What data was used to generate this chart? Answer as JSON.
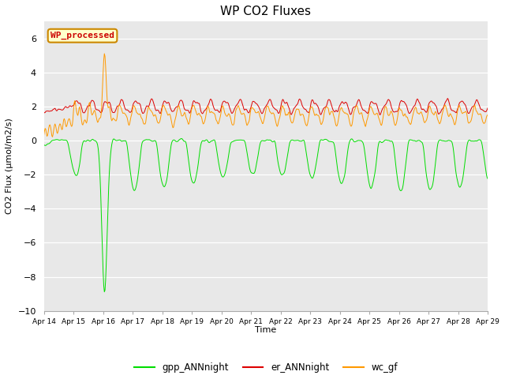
{
  "title": "WP CO2 Fluxes",
  "xlabel": "Time",
  "ylabel": "CO2 Flux (μmol/m2/s)",
  "ylim": [
    -10,
    7
  ],
  "yticks": [
    -10,
    -8,
    -6,
    -4,
    -2,
    0,
    2,
    4,
    6
  ],
  "background_color": "#e8e8e8",
  "fig_background": "#ffffff",
  "legend_label_green": "gpp_ANNnight",
  "legend_label_red": "er_ANNnight",
  "legend_label_orange": "wc_gf",
  "color_green": "#00dd00",
  "color_red": "#dd0000",
  "color_orange": "#ff9900",
  "watermark_text": "WP_processed",
  "watermark_facecolor": "#ffffcc",
  "watermark_edgecolor": "#cc8800",
  "watermark_textcolor": "#cc0000",
  "n_points": 720,
  "x_start": 14,
  "x_end": 29,
  "xtick_positions": [
    14,
    15,
    16,
    17,
    18,
    19,
    20,
    21,
    22,
    23,
    24,
    25,
    26,
    27,
    28,
    29
  ],
  "xtick_labels": [
    "Apr 14",
    "Apr 15",
    "Apr 16",
    "Apr 17",
    "Apr 18",
    "Apr 19",
    "Apr 20",
    "Apr 21",
    "Apr 22",
    "Apr 23",
    "Apr 24",
    "Apr 25",
    "Apr 26",
    "Apr 27",
    "Apr 28",
    "Apr 29"
  ]
}
